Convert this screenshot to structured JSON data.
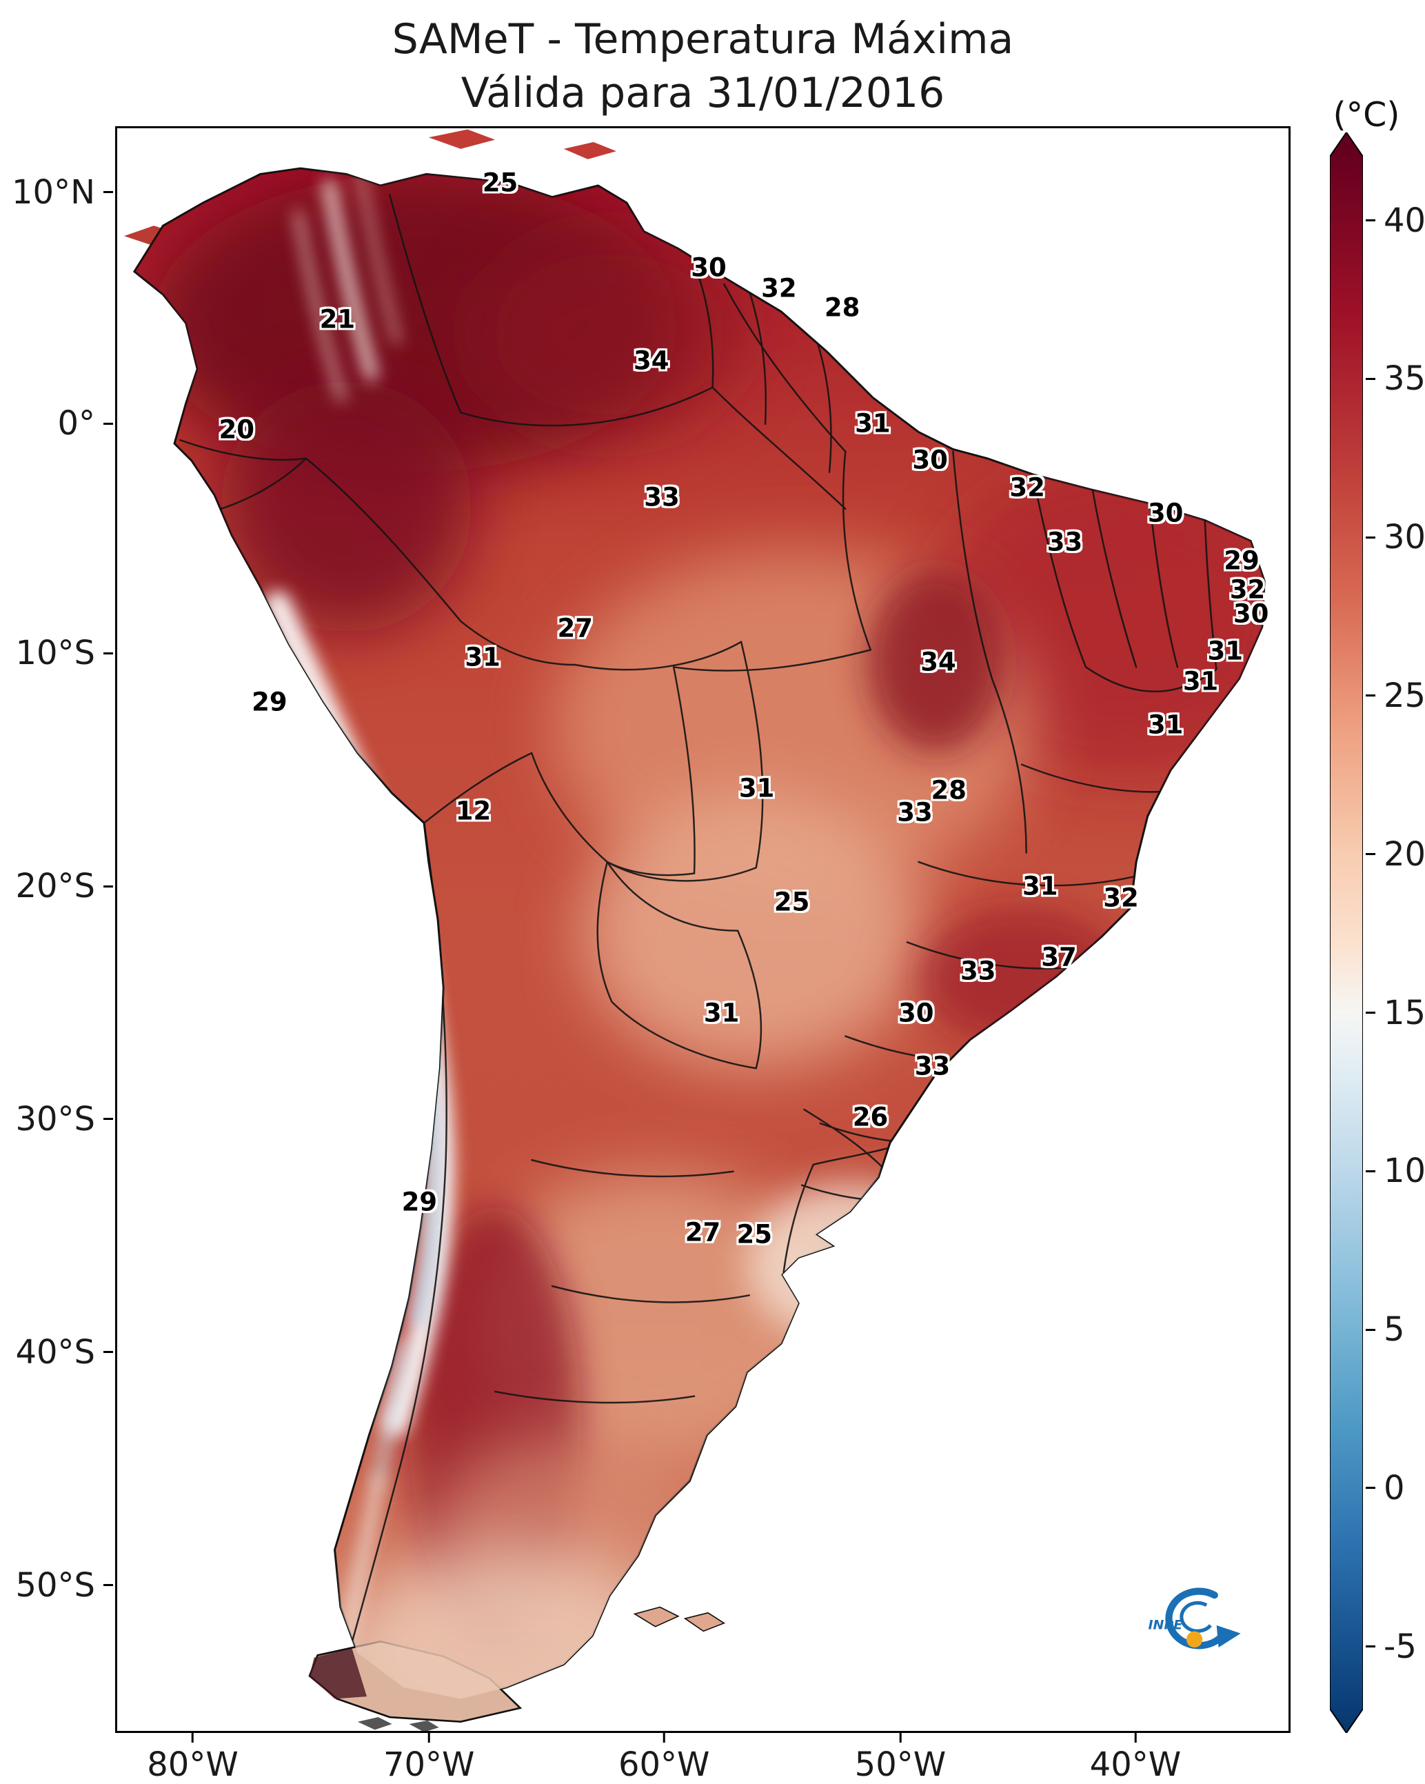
{
  "figure": {
    "title_line1": "SAMeT - Temperatura Máxima",
    "title_line2": "Válida para 31/01/2016",
    "unit_label": "(°C)",
    "logo_text": "INPE"
  },
  "axes": {
    "y_ticks": [
      {
        "label": "10°N",
        "pct": 4.1
      },
      {
        "label": "0°",
        "pct": 18.5
      },
      {
        "label": "10°S",
        "pct": 32.8
      },
      {
        "label": "20°S",
        "pct": 47.3
      },
      {
        "label": "30°S",
        "pct": 61.8
      },
      {
        "label": "40°S",
        "pct": 76.3
      },
      {
        "label": "50°S",
        "pct": 90.8
      }
    ],
    "x_ticks": [
      {
        "label": "80°W",
        "pct": 6.6
      },
      {
        "label": "70°W",
        "pct": 26.7
      },
      {
        "label": "60°W",
        "pct": 46.7
      },
      {
        "label": "50°W",
        "pct": 66.8
      },
      {
        "label": "40°W",
        "pct": 86.8
      }
    ]
  },
  "colorbar": {
    "unit": "°C",
    "ticks": [
      {
        "label": "40",
        "pct": 5.5
      },
      {
        "label": "35",
        "pct": 15.4
      },
      {
        "label": "30",
        "pct": 25.3
      },
      {
        "label": "25",
        "pct": 35.2
      },
      {
        "label": "20",
        "pct": 45.1
      },
      {
        "label": "15",
        "pct": 55.0
      },
      {
        "label": "10",
        "pct": 64.9
      },
      {
        "label": "5",
        "pct": 74.8
      },
      {
        "label": "0",
        "pct": 84.7
      },
      {
        "label": "-5",
        "pct": 94.6
      }
    ],
    "gradient": [
      {
        "pct": 0,
        "color": "#5f001c"
      },
      {
        "pct": 1.5,
        "color": "#67001f"
      },
      {
        "pct": 11.4,
        "color": "#9e1127"
      },
      {
        "pct": 21.3,
        "color": "#c03f3a"
      },
      {
        "pct": 29.2,
        "color": "#d86a53"
      },
      {
        "pct": 37.1,
        "color": "#ee9f80"
      },
      {
        "pct": 45.1,
        "color": "#f8ccb0"
      },
      {
        "pct": 51.0,
        "color": "#fbe3d1"
      },
      {
        "pct": 55.0,
        "color": "#f6f6f4"
      },
      {
        "pct": 59.0,
        "color": "#dfecf3"
      },
      {
        "pct": 64.9,
        "color": "#bcd8ea"
      },
      {
        "pct": 72.8,
        "color": "#84bcd9"
      },
      {
        "pct": 80.7,
        "color": "#4e9ac6"
      },
      {
        "pct": 88.6,
        "color": "#2b70ae"
      },
      {
        "pct": 98.5,
        "color": "#0a3d78"
      },
      {
        "pct": 100,
        "color": "#083666"
      }
    ]
  },
  "chart_data": {
    "type": "heatmap",
    "title": "SAMeT - Temperatura Máxima",
    "subtitle": "Válida para 31/01/2016",
    "variable": "Temperatura Máxima",
    "date": "31/01/2016",
    "region": "South America",
    "colorbar": {
      "unit": "°C",
      "ticks": [
        40,
        35,
        30,
        25,
        20,
        15,
        10,
        5,
        0,
        -5
      ],
      "colormap": "red-to-blue diverging (hot=dark red, cold=dark blue)",
      "hot_hex": "#67001f",
      "cold_hex": "#083666"
    },
    "x_axis_ticks": [
      "80°W",
      "70°W",
      "60°W",
      "50°W",
      "40°W"
    ],
    "y_axis_ticks": [
      "10°N",
      "0°",
      "10°S",
      "20°S",
      "30°S",
      "40°S",
      "50°S"
    ],
    "point_labels": [
      {
        "value": 25,
        "x_pct": 32.7,
        "y_pct": 3.4
      },
      {
        "value": 21,
        "x_pct": 18.8,
        "y_pct": 11.9
      },
      {
        "value": 30,
        "x_pct": 50.5,
        "y_pct": 8.7
      },
      {
        "value": 32,
        "x_pct": 56.5,
        "y_pct": 10.0
      },
      {
        "value": 28,
        "x_pct": 61.9,
        "y_pct": 11.2
      },
      {
        "value": 34,
        "x_pct": 45.6,
        "y_pct": 14.5
      },
      {
        "value": 20,
        "x_pct": 10.2,
        "y_pct": 18.8
      },
      {
        "value": 31,
        "x_pct": 64.5,
        "y_pct": 18.4
      },
      {
        "value": 30,
        "x_pct": 69.4,
        "y_pct": 20.7
      },
      {
        "value": 32,
        "x_pct": 77.7,
        "y_pct": 22.4
      },
      {
        "value": 33,
        "x_pct": 46.5,
        "y_pct": 23.0
      },
      {
        "value": 30,
        "x_pct": 89.5,
        "y_pct": 24.0
      },
      {
        "value": 33,
        "x_pct": 80.9,
        "y_pct": 25.8
      },
      {
        "value": 29,
        "x_pct": 96.0,
        "y_pct": 27.0
      },
      {
        "value": 32,
        "x_pct": 96.5,
        "y_pct": 28.8
      },
      {
        "value": 30,
        "x_pct": 96.8,
        "y_pct": 30.3
      },
      {
        "value": 27,
        "x_pct": 39.1,
        "y_pct": 31.2
      },
      {
        "value": 31,
        "x_pct": 94.6,
        "y_pct": 32.6
      },
      {
        "value": 31,
        "x_pct": 31.2,
        "y_pct": 33.0
      },
      {
        "value": 34,
        "x_pct": 70.1,
        "y_pct": 33.3
      },
      {
        "value": 31,
        "x_pct": 92.5,
        "y_pct": 34.5
      },
      {
        "value": 29,
        "x_pct": 13.0,
        "y_pct": 35.8
      },
      {
        "value": 31,
        "x_pct": 89.5,
        "y_pct": 37.2
      },
      {
        "value": 31,
        "x_pct": 54.6,
        "y_pct": 41.2
      },
      {
        "value": 28,
        "x_pct": 71.0,
        "y_pct": 41.3
      },
      {
        "value": 33,
        "x_pct": 68.1,
        "y_pct": 42.7
      },
      {
        "value": 12,
        "x_pct": 30.4,
        "y_pct": 42.6
      },
      {
        "value": 31,
        "x_pct": 78.8,
        "y_pct": 47.3
      },
      {
        "value": 32,
        "x_pct": 85.7,
        "y_pct": 48.0
      },
      {
        "value": 25,
        "x_pct": 57.6,
        "y_pct": 48.3
      },
      {
        "value": 37,
        "x_pct": 80.4,
        "y_pct": 51.7
      },
      {
        "value": 33,
        "x_pct": 73.5,
        "y_pct": 52.6
      },
      {
        "value": 31,
        "x_pct": 51.6,
        "y_pct": 55.2
      },
      {
        "value": 30,
        "x_pct": 68.2,
        "y_pct": 55.2
      },
      {
        "value": 33,
        "x_pct": 69.6,
        "y_pct": 58.5
      },
      {
        "value": 26,
        "x_pct": 64.3,
        "y_pct": 61.7
      },
      {
        "value": 29,
        "x_pct": 25.8,
        "y_pct": 67.0
      },
      {
        "value": 27,
        "x_pct": 50.0,
        "y_pct": 68.9
      },
      {
        "value": 25,
        "x_pct": 54.4,
        "y_pct": 69.0
      }
    ]
  }
}
